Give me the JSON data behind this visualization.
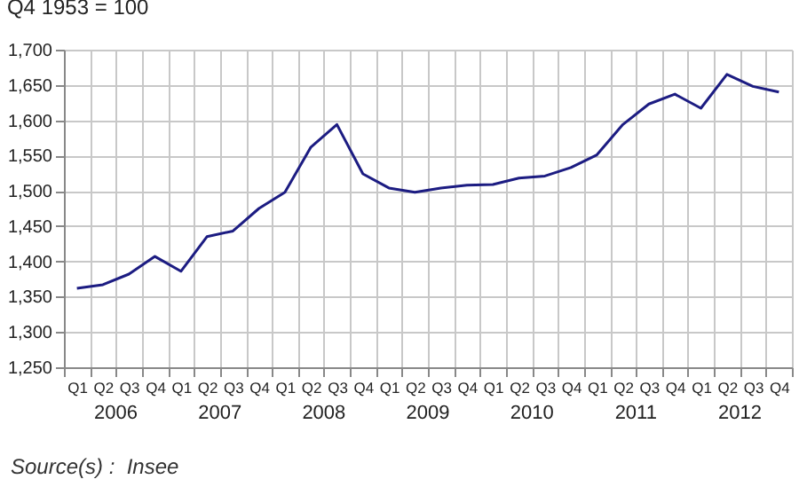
{
  "chart_data": {
    "type": "line",
    "title": "Q4 1953 = 100",
    "categories": [
      "Q1",
      "Q2",
      "Q3",
      "Q4",
      "Q1",
      "Q2",
      "Q3",
      "Q4",
      "Q1",
      "Q2",
      "Q3",
      "Q4",
      "Q1",
      "Q2",
      "Q3",
      "Q4",
      "Q1",
      "Q2",
      "Q3",
      "Q4",
      "Q1",
      "Q2",
      "Q3",
      "Q4",
      "Q1",
      "Q2",
      "Q3",
      "Q4"
    ],
    "series": [
      {
        "color": "#1c1c82",
        "values": [
          1362,
          1367,
          1382,
          1407,
          1386,
          1435,
          1443,
          1475,
          1498,
          1562,
          1594,
          1524,
          1504,
          1498,
          1504,
          1508,
          1509,
          1518,
          1521,
          1533,
          1551,
          1594,
          1623,
          1637,
          1617,
          1665,
          1648,
          1640
        ]
      }
    ],
    "ylim": [
      1250,
      1700
    ],
    "yticks": [
      {
        "value": 1250,
        "label": "1,250"
      },
      {
        "value": 1300,
        "label": "1,300"
      },
      {
        "value": 1350,
        "label": "1,350"
      },
      {
        "value": 1400,
        "label": "1,400"
      },
      {
        "value": 1450,
        "label": "1,450"
      },
      {
        "value": 1500,
        "label": "1,500"
      },
      {
        "value": 1550,
        "label": "1,550"
      },
      {
        "value": 1600,
        "label": "1,600"
      },
      {
        "value": 1650,
        "label": "1,650"
      },
      {
        "value": 1700,
        "label": "1,700"
      }
    ],
    "grid": true,
    "annotations": [
      "2006",
      "2007",
      "2008",
      "2009",
      "2010",
      "2011",
      "2012",
      "Source(s) :  Insee"
    ]
  }
}
